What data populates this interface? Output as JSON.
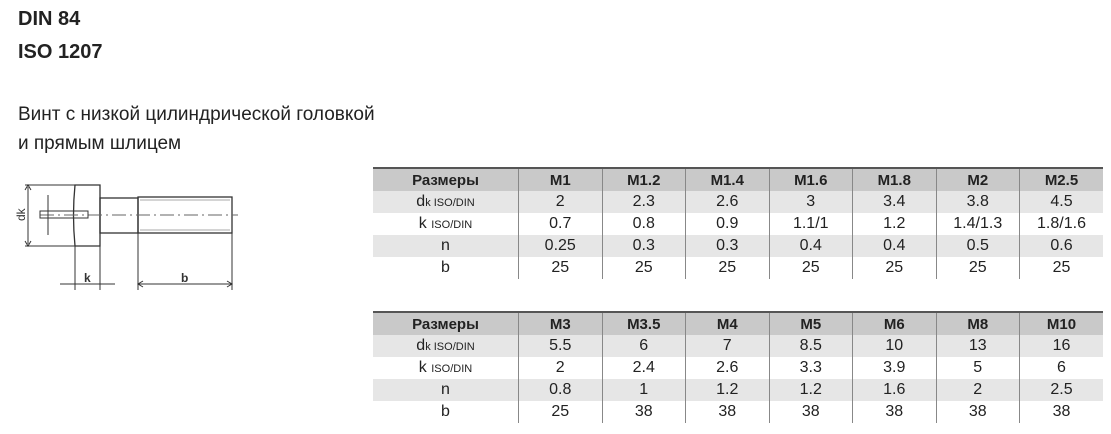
{
  "title": {
    "line1": "DIN 84",
    "line2": "ISO 1207"
  },
  "description": {
    "line1": "Винт с низкой цилиндрической головкой",
    "line2": "и прямым шлицем"
  },
  "drawing": {
    "labels": {
      "dk": "dk",
      "k": "k",
      "b": "b"
    }
  },
  "row_labels": {
    "header": "Размеры",
    "dk": "d",
    "dk_sub": "k ISO/DIN",
    "k": "k",
    "k_sub": "ISO/DIN",
    "n": "n",
    "b": "b"
  },
  "tables": [
    {
      "sizes": [
        "M1",
        "M1.2",
        "M1.4",
        "M1.6",
        "M1.8",
        "M2",
        "M2.5"
      ],
      "dk": [
        "2",
        "2.3",
        "2.6",
        "3",
        "3.4",
        "3.8",
        "4.5"
      ],
      "k": [
        "0.7",
        "0.8",
        "0.9",
        "1.1/1",
        "1.2",
        "1.4/1.3",
        "1.8/1.6"
      ],
      "n": [
        "0.25",
        "0.3",
        "0.3",
        "0.4",
        "0.4",
        "0.5",
        "0.6"
      ],
      "b": [
        "25",
        "25",
        "25",
        "25",
        "25",
        "25",
        "25"
      ]
    },
    {
      "sizes": [
        "M3",
        "M3.5",
        "M4",
        "M5",
        "M6",
        "M8",
        "M10"
      ],
      "dk": [
        "5.5",
        "6",
        "7",
        "8.5",
        "10",
        "13",
        "16"
      ],
      "k": [
        "2",
        "2.4",
        "2.6",
        "3.3",
        "3.9",
        "5",
        "6"
      ],
      "n": [
        "0.8",
        "1",
        "1.2",
        "1.2",
        "1.6",
        "2",
        "2.5"
      ],
      "b": [
        "25",
        "38",
        "38",
        "38",
        "38",
        "38",
        "38"
      ]
    }
  ]
}
